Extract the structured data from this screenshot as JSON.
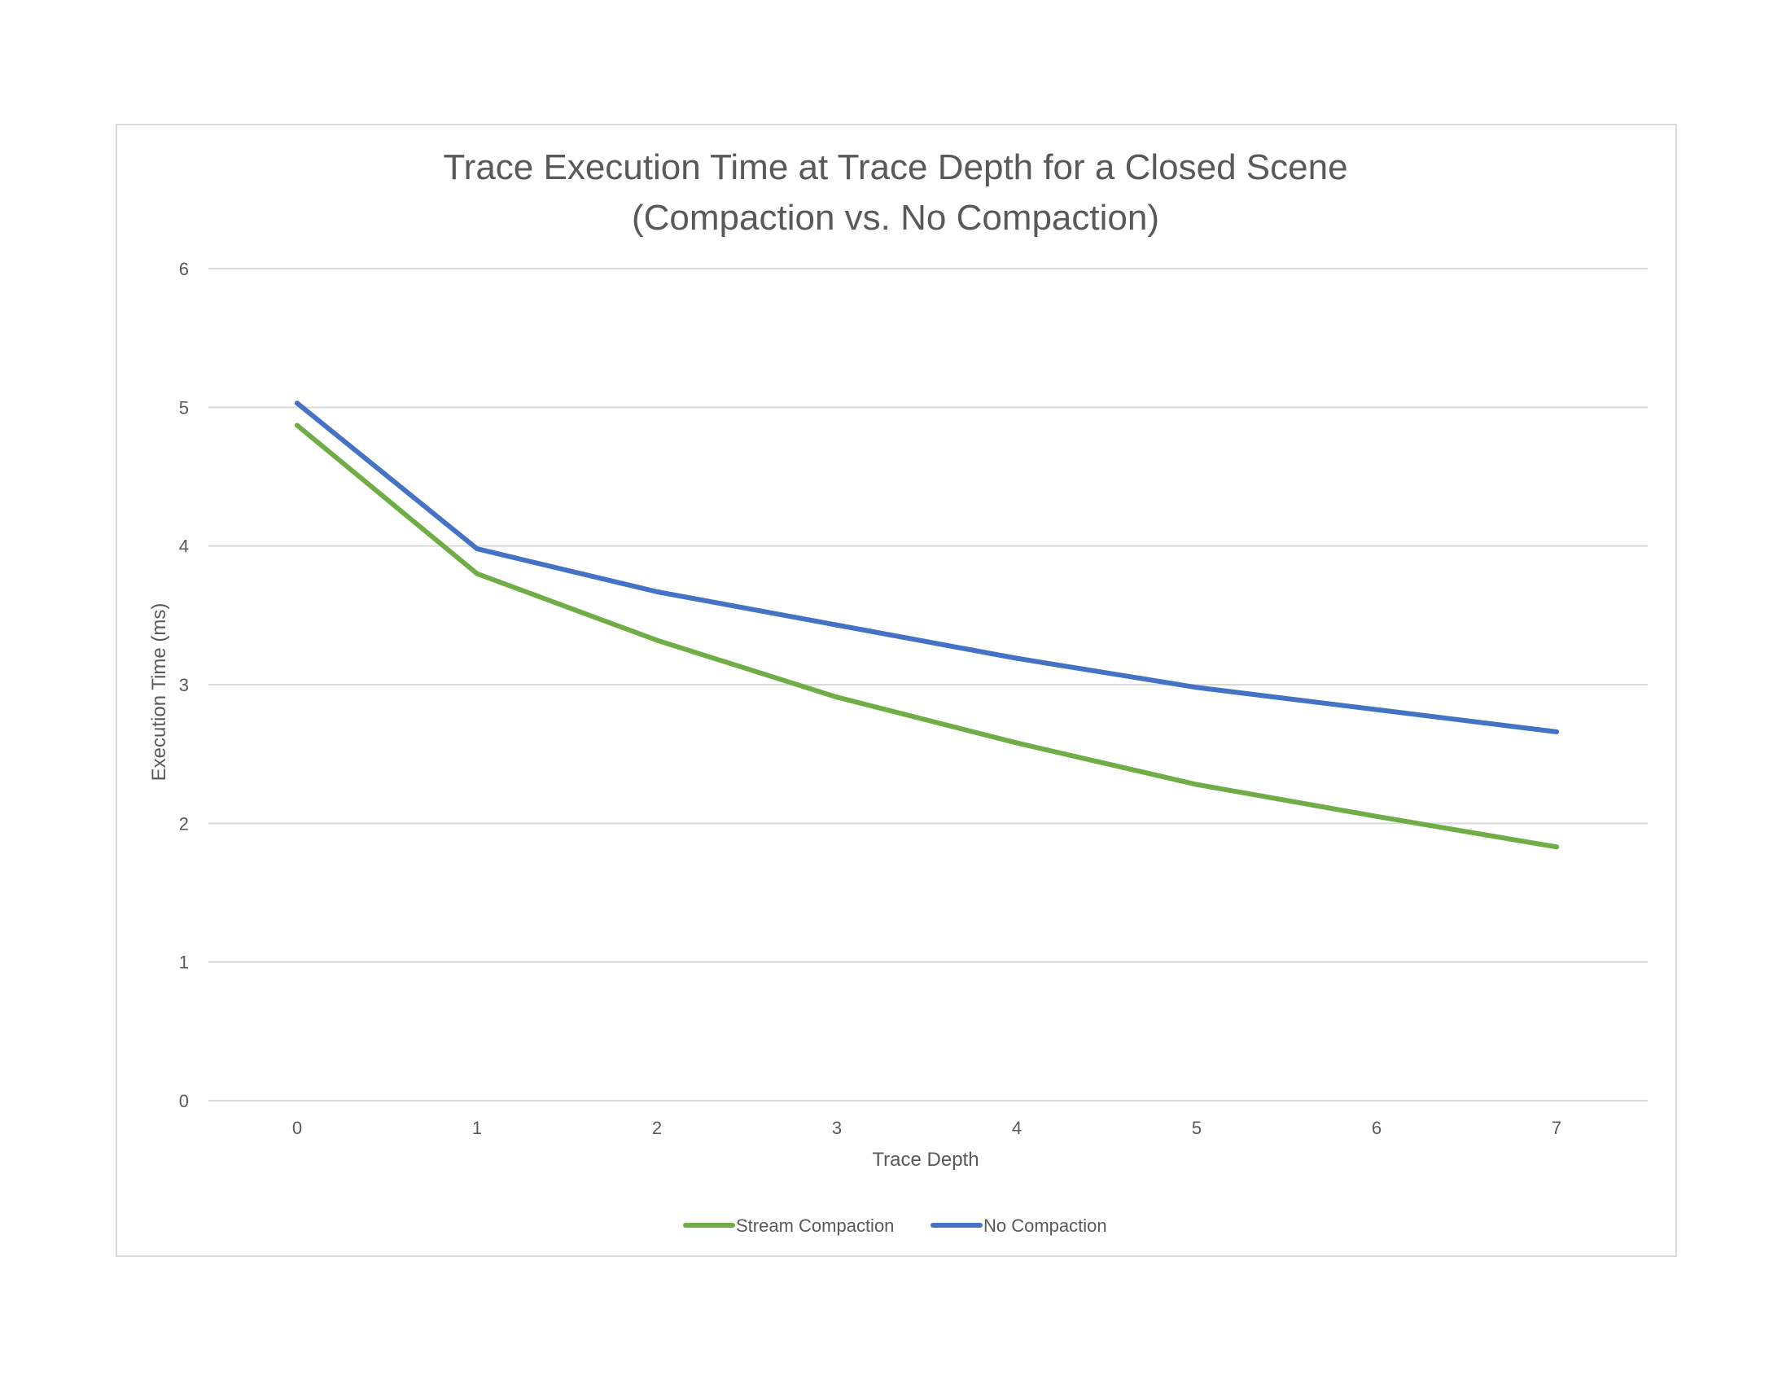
{
  "chart_data": {
    "type": "line",
    "title_lines": [
      "Trace Execution Time at Trace Depth for a Closed Scene",
      "(Compaction vs. No Compaction)"
    ],
    "xlabel": "Trace Depth",
    "ylabel": "Execution Time (ms)",
    "x": [
      0,
      1,
      2,
      3,
      4,
      5,
      6,
      7
    ],
    "x_tick_labels": [
      "0",
      "1",
      "2",
      "3",
      "4",
      "5",
      "6",
      "7"
    ],
    "ylim": [
      0,
      6
    ],
    "y_ticks": [
      0,
      1,
      2,
      3,
      4,
      5,
      6
    ],
    "y_tick_labels": [
      "0",
      "1",
      "2",
      "3",
      "4",
      "5",
      "6"
    ],
    "grid": "horizontal",
    "legend_position": "bottom",
    "series": [
      {
        "name": "Stream Compaction",
        "color": "#70ad47",
        "values": [
          4.87,
          3.8,
          3.32,
          2.91,
          2.58,
          2.28,
          2.05,
          1.83
        ]
      },
      {
        "name": "No Compaction",
        "color": "#4472c4",
        "values": [
          5.03,
          3.98,
          3.67,
          3.43,
          3.19,
          2.98,
          2.82,
          2.66
        ]
      }
    ],
    "colors": {
      "grid": "#d9d9d9",
      "text": "#595959",
      "frame": "#d9d9d9"
    }
  }
}
